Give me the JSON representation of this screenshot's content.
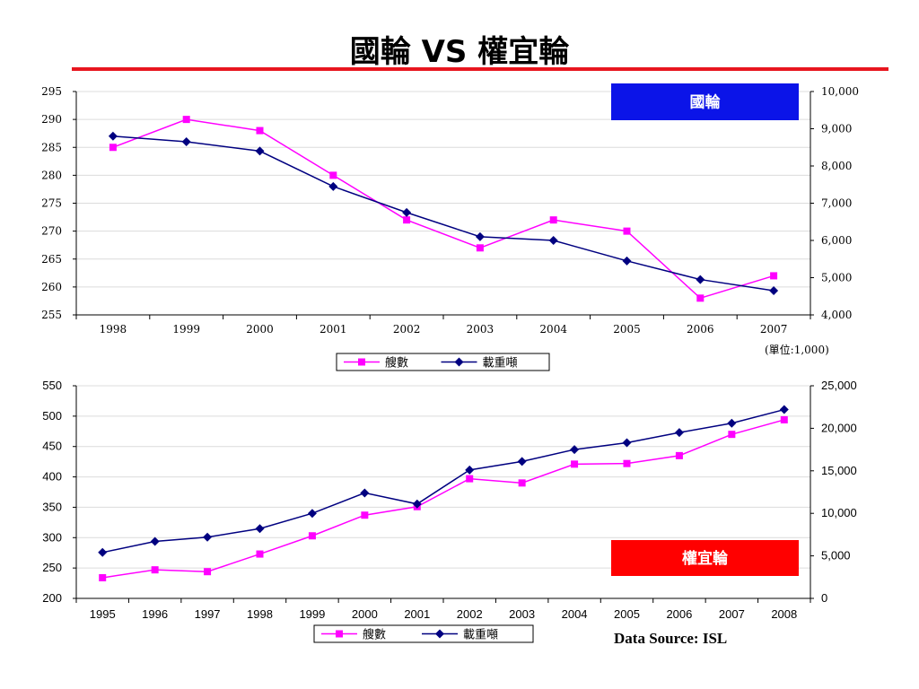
{
  "title": "國輪 VS 權宜輪",
  "source": "Data Source: ISL",
  "colors": {
    "ships": "#ff00ff",
    "dwt": "#000080",
    "accent_rule": "#e8161f",
    "national_box": "#0b14e8",
    "flag_box": "#ff0000"
  },
  "chart_data": [
    {
      "type": "line",
      "label_box": "國輪",
      "unit": "(單位:1,000)",
      "x": [
        "1998",
        "1999",
        "2000",
        "2001",
        "2002",
        "2003",
        "2004",
        "2005",
        "2006",
        "2007"
      ],
      "series": [
        {
          "name": "艘數",
          "axis": "left",
          "color": "#ff00ff",
          "marker": "square",
          "values": [
            285,
            290,
            288,
            280,
            272,
            267,
            272,
            270,
            258,
            262
          ]
        },
        {
          "name": "載重噸",
          "axis": "right",
          "color": "#000080",
          "marker": "diamond",
          "values": [
            8800,
            8650,
            8400,
            7450,
            6750,
            6100,
            6000,
            5450,
            4950,
            4650
          ]
        }
      ],
      "ylim_left": [
        255,
        295
      ],
      "yticks_left": [
        "295",
        "290",
        "285",
        "280",
        "275",
        "270",
        "265",
        "260",
        "255"
      ],
      "ylim_right": [
        4000,
        10000
      ],
      "yticks_right": [
        "10,000",
        "9,000",
        "8,000",
        "7,000",
        "6,000",
        "5,000",
        "4,000"
      ],
      "legend": [
        {
          "label": "艘數"
        },
        {
          "label": "載重噸"
        }
      ],
      "grid": true,
      "legend_position": "bottom"
    },
    {
      "type": "line",
      "label_box": "權宜輪",
      "x": [
        "1995",
        "1996",
        "1997",
        "1998",
        "1999",
        "2000",
        "2001",
        "2002",
        "2003",
        "2004",
        "2005",
        "2006",
        "2007",
        "2008"
      ],
      "series": [
        {
          "name": "艘數",
          "axis": "left",
          "color": "#ff00ff",
          "marker": "square",
          "values": [
            234,
            247,
            244,
            273,
            303,
            337,
            351,
            397,
            390,
            421,
            422,
            435,
            470,
            494
          ]
        },
        {
          "name": "載重噸",
          "axis": "right",
          "color": "#000080",
          "marker": "diamond",
          "values": [
            5400,
            6700,
            7200,
            8200,
            10000,
            12400,
            11100,
            15100,
            16100,
            17500,
            18300,
            19500,
            20600,
            22200
          ]
        }
      ],
      "ylim_left": [
        200,
        550
      ],
      "yticks_left": [
        "550",
        "500",
        "450",
        "400",
        "350",
        "300",
        "250",
        "200"
      ],
      "ylim_right": [
        0,
        25000
      ],
      "yticks_right": [
        "25,000",
        "20,000",
        "15,000",
        "10,000",
        "5,000",
        "0"
      ],
      "legend": [
        {
          "label": "艘數"
        },
        {
          "label": "載重噸"
        }
      ],
      "grid": true,
      "legend_position": "bottom"
    }
  ]
}
